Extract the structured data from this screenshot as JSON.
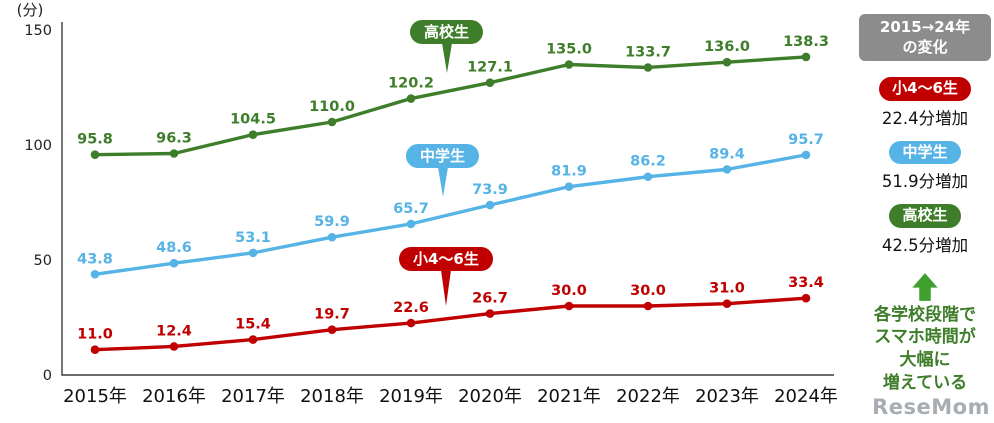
{
  "chart_data": {
    "type": "line",
    "title": "",
    "ylabel": "(分)",
    "ylim": [
      0,
      150
    ],
    "yticks": [
      0,
      50,
      100,
      150
    ],
    "grid": false,
    "legend_position": "on-line-badges",
    "categories": [
      "2015年",
      "2016年",
      "2017年",
      "2018年",
      "2019年",
      "2020年",
      "2021年",
      "2022年",
      "2023年",
      "2024年"
    ],
    "series": [
      {
        "name": "高校生",
        "color": "#3e7e2a",
        "values": [
          95.8,
          96.3,
          104.5,
          110.0,
          120.2,
          127.1,
          135.0,
          133.7,
          136.0,
          138.3
        ]
      },
      {
        "name": "中学生",
        "color": "#56b3e6",
        "values": [
          43.8,
          48.6,
          53.1,
          59.9,
          65.7,
          73.9,
          81.9,
          86.2,
          89.4,
          95.7
        ]
      },
      {
        "name": "小4〜6生",
        "color": "#c00000",
        "values": [
          11.0,
          12.4,
          15.4,
          19.7,
          22.6,
          26.7,
          30.0,
          30.0,
          31.0,
          33.4
        ]
      }
    ]
  },
  "sidebar": {
    "header": {
      "lines": [
        "2015→24年",
        "の変化"
      ],
      "color": "#8c8c8c"
    },
    "items": [
      {
        "label": "小4〜6生",
        "change": "22.4分増加",
        "color": "#c00000"
      },
      {
        "label": "中学生",
        "change": "51.9分増加",
        "color": "#56b3e6"
      },
      {
        "label": "高校生",
        "change": "42.5分増加",
        "color": "#3e7e2a"
      }
    ],
    "arrow_color": "#3fa02e",
    "summary_color": "#3e7e2a",
    "summary_lines": [
      "各学校段階で",
      "スマホ時間が",
      "大幅に",
      "増えている"
    ]
  },
  "watermark": {
    "text": "ReseMom"
  }
}
